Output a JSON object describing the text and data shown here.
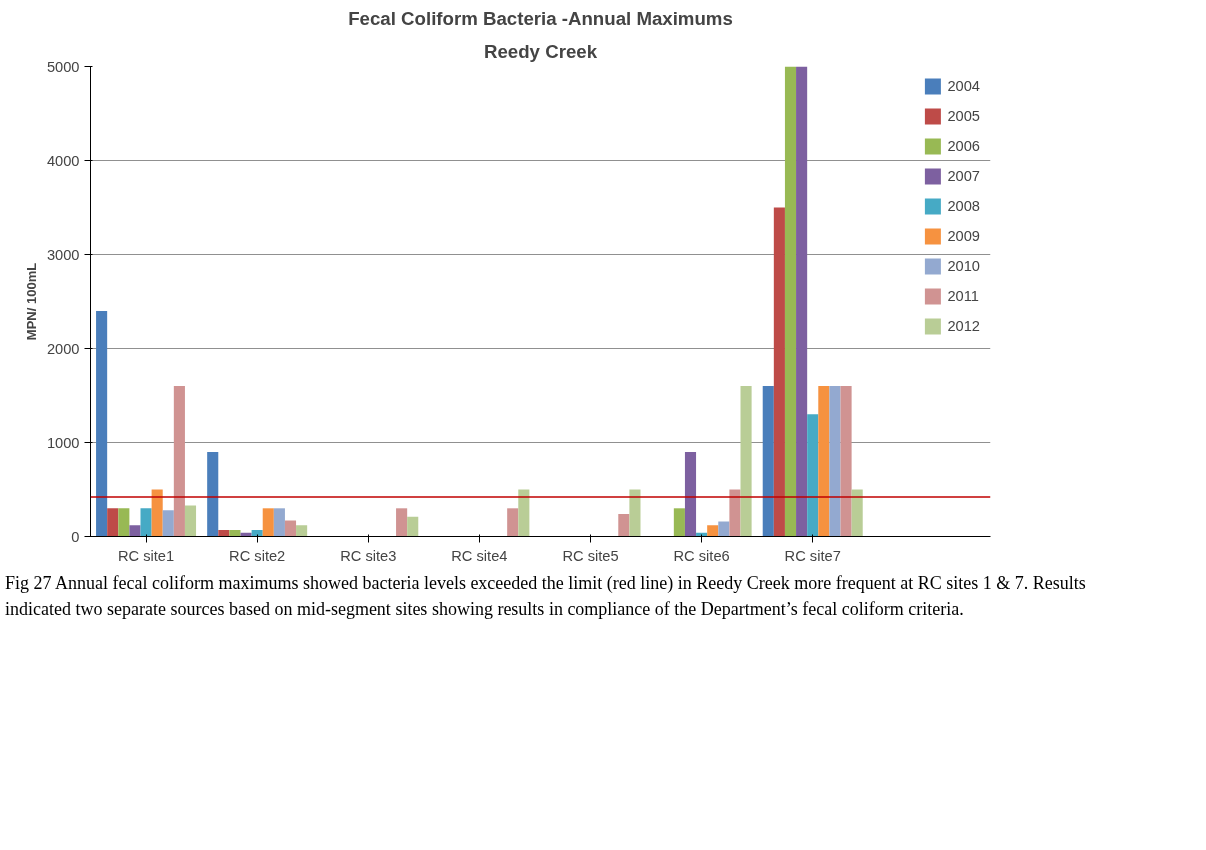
{
  "chart_data": {
    "type": "bar",
    "title": "Fecal Coliform Bacteria -Annual Maximums",
    "subtitle": "Reedy Creek",
    "ylabel": "MPN/ 100mL",
    "categories": [
      "RC site1",
      "RC site2",
      "RC site3",
      "RC site4",
      "RC site5",
      "RC site6",
      "RC site7"
    ],
    "series": [
      {
        "name": "2004",
        "color": "#4a7ebb",
        "values": [
          2400,
          900,
          null,
          null,
          null,
          null,
          1600
        ]
      },
      {
        "name": "2005",
        "color": "#be4b48",
        "values": [
          300,
          70,
          null,
          null,
          null,
          null,
          3500
        ]
      },
      {
        "name": "2006",
        "color": "#98b954",
        "values": [
          300,
          70,
          null,
          null,
          null,
          300,
          5000
        ]
      },
      {
        "name": "2007",
        "color": "#7d60a0",
        "values": [
          120,
          40,
          null,
          null,
          null,
          900,
          5000
        ]
      },
      {
        "name": "2008",
        "color": "#46aac5",
        "values": [
          300,
          70,
          null,
          null,
          null,
          40,
          1300
        ]
      },
      {
        "name": "2009",
        "color": "#f69240",
        "values": [
          500,
          300,
          null,
          null,
          null,
          120,
          1600
        ]
      },
      {
        "name": "2010",
        "color": "#93a9d0",
        "values": [
          280,
          300,
          null,
          null,
          null,
          160,
          1600
        ]
      },
      {
        "name": "2011",
        "color": "#d09392",
        "values": [
          1600,
          170,
          300,
          300,
          240,
          500,
          1600
        ]
      },
      {
        "name": "2012",
        "color": "#b9cd96",
        "values": [
          330,
          120,
          210,
          500,
          500,
          1600,
          500
        ]
      }
    ],
    "ylim": [
      0,
      5000
    ],
    "yticks": [
      0,
      1000,
      2000,
      3000,
      4000,
      5000
    ],
    "grid": "y",
    "legend": "right",
    "ref_lines": [
      {
        "axis": "y",
        "value": 420,
        "color": "#c00000"
      }
    ],
    "annotations": [
      "Fig 27 Annual fecal coliform maximums showed bacteria levels exceeded the limit (red line) in Reedy Creek more frequent at RC sites 1 & 7.  Results indicated two separate sources based on mid-segment sites showing results in compliance of the Department’s fecal coliform criteria."
    ]
  }
}
